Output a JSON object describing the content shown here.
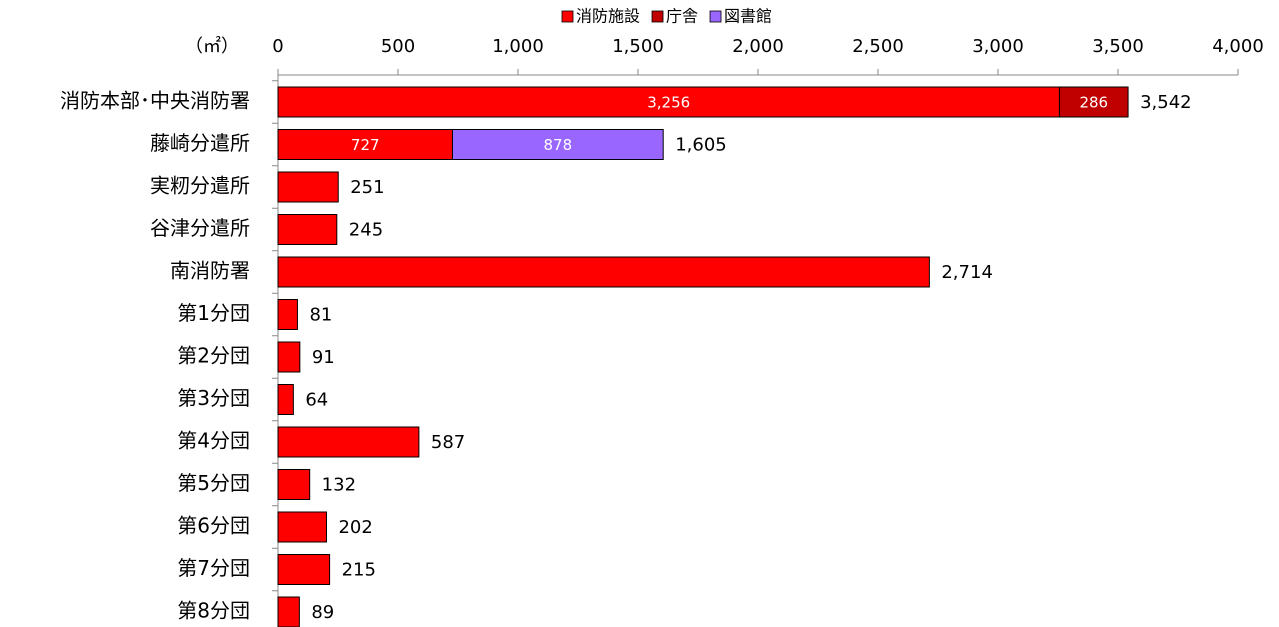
{
  "chart_data": {
    "type": "stacked-barh",
    "unit_label": "（㎡）",
    "categories": [
      "消防本部･中央消防署",
      "藤崎分遣所",
      "実籾分遣所",
      "谷津分遣所",
      "南消防署",
      "第1分団",
      "第2分団",
      "第3分団",
      "第4分団",
      "第5分団",
      "第6分団",
      "第7分団",
      "第8分団"
    ],
    "series": [
      {
        "name": "消防施設",
        "color": "#ff0000",
        "values": [
          3256,
          727,
          251,
          245,
          2714,
          81,
          91,
          64,
          587,
          132,
          202,
          215,
          89
        ],
        "value_labels": [
          "3,256",
          "727",
          null,
          null,
          null,
          null,
          null,
          null,
          null,
          null,
          null,
          null,
          null
        ]
      },
      {
        "name": "庁舎",
        "color": "#c00000",
        "values": [
          286,
          null,
          null,
          null,
          null,
          null,
          null,
          null,
          null,
          null,
          null,
          null,
          null
        ],
        "value_labels": [
          "286",
          null,
          null,
          null,
          null,
          null,
          null,
          null,
          null,
          null,
          null,
          null,
          null
        ]
      },
      {
        "name": "図書館",
        "color": "#9966ff",
        "values": [
          null,
          878,
          null,
          null,
          null,
          null,
          null,
          null,
          null,
          null,
          null,
          null,
          null
        ],
        "value_labels": [
          null,
          "878",
          null,
          null,
          null,
          null,
          null,
          null,
          null,
          null,
          null,
          null,
          null
        ]
      }
    ],
    "totals": [
      3542,
      1605,
      251,
      245,
      2714,
      81,
      91,
      64,
      587,
      132,
      202,
      215,
      89
    ],
    "total_labels": [
      "3,542",
      "1,605",
      "251",
      "245",
      "2,714",
      "81",
      "91",
      "64",
      "587",
      "132",
      "202",
      "215",
      "89"
    ],
    "xlim": [
      0,
      4000
    ],
    "xticks": [
      0,
      500,
      {
        "value": 1000,
        "label": "1,000"
      },
      {
        "value": 1500,
        "label": "1,500"
      },
      {
        "value": 2000,
        "label": "2,000"
      },
      {
        "value": 2500,
        "label": "2,500"
      },
      {
        "value": 3000,
        "label": "3,000"
      },
      {
        "value": 3500,
        "label": "3,500"
      },
      {
        "value": 4000,
        "label": "4,000"
      }
    ],
    "legend": "top"
  }
}
